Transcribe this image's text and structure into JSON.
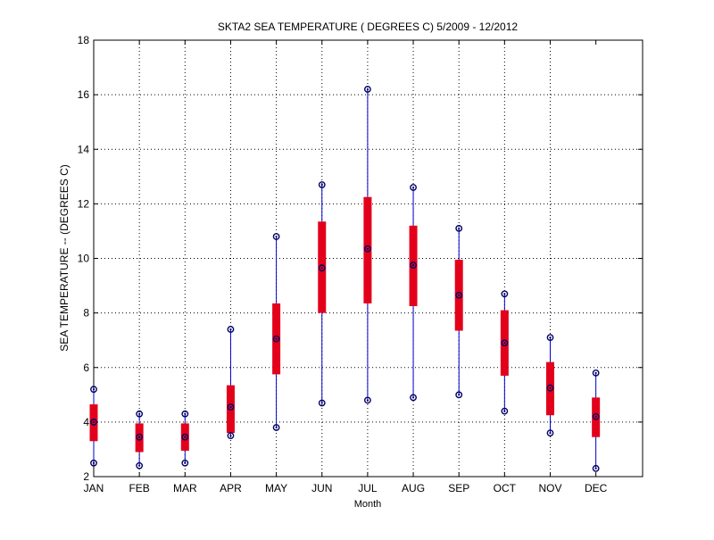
{
  "chart_data": {
    "type": "box",
    "title": "SKTA2  SEA TEMPERATURE ( DEGREES C) 5/2009 - 12/2012",
    "xlabel": "Month",
    "ylabel": "SEA TEMPERATURE -- (DEGREES C)",
    "ylim": [
      2,
      18
    ],
    "yticks": [
      2,
      4,
      6,
      8,
      10,
      12,
      14,
      16,
      18
    ],
    "grid": true,
    "categories": [
      "JAN",
      "FEB",
      "MAR",
      "APR",
      "MAY",
      "JUN",
      "JUL",
      "AUG",
      "SEP",
      "OCT",
      "NOV",
      "DEC"
    ],
    "min": [
      2.5,
      2.4,
      2.5,
      3.5,
      3.8,
      4.7,
      4.8,
      4.9,
      5.0,
      4.4,
      3.6,
      2.3
    ],
    "q1": [
      3.3,
      2.9,
      2.95,
      3.6,
      5.75,
      8.0,
      8.35,
      8.25,
      7.35,
      5.7,
      4.25,
      3.45
    ],
    "median": [
      4.0,
      3.45,
      3.45,
      4.55,
      7.05,
      9.65,
      10.35,
      9.75,
      8.65,
      6.9,
      5.25,
      4.2
    ],
    "q3": [
      4.65,
      3.95,
      3.95,
      5.35,
      8.35,
      11.35,
      12.25,
      11.2,
      9.95,
      8.1,
      6.2,
      4.9
    ],
    "max": [
      5.2,
      4.3,
      4.3,
      7.4,
      10.8,
      12.7,
      16.2,
      12.6,
      11.1,
      8.7,
      7.1,
      5.8
    ],
    "colors": {
      "box": "#e3001b",
      "whisker": "#0000cc",
      "marker": "#000066",
      "grid": "#000000"
    }
  }
}
